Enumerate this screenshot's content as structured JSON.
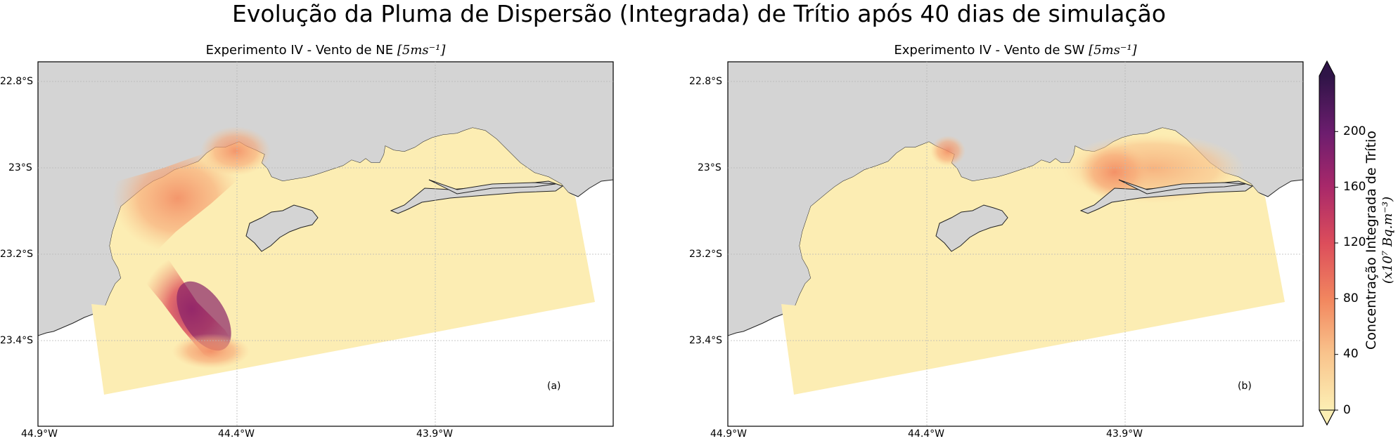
{
  "figure": {
    "title": "Evolução da Pluma de Dispersão (Integrada) de Trítio após 40 dias de simulação"
  },
  "panels": [
    {
      "title_prefix": "Experimento IV - Vento de NE ",
      "title_unit": "[5ms⁻¹]",
      "letter": "(a)",
      "wind": "NE"
    },
    {
      "title_prefix": "Experimento IV - Vento de SW ",
      "title_unit": "[5ms⁻¹]",
      "letter": "(b)",
      "wind": "SW"
    }
  ],
  "axes": {
    "lat_ticks": [
      "22.8°S",
      "23°S",
      "23.2°S",
      "23.4°S"
    ],
    "lon_ticks": [
      "44.9°W",
      "44.4°W",
      "43.9°W"
    ]
  },
  "colorbar": {
    "label_line1": "Concentração Integrada de Trítio",
    "label_line2": "(x10⁷ Bq.m⁻³)",
    "ticks": [
      "0",
      "40",
      "80",
      "120",
      "160",
      "200"
    ],
    "range": [
      0,
      240
    ],
    "extend": "both",
    "colormap": "magma_r",
    "colors": [
      "#fcefb4",
      "#f9c38c",
      "#f2875f",
      "#dc4d5b",
      "#a8286a",
      "#6c1d6e",
      "#2f1447"
    ]
  },
  "colors": {
    "land": "#d4d4d4",
    "background_plume": "#fcedb3",
    "grid": "#b7b7b7"
  }
}
